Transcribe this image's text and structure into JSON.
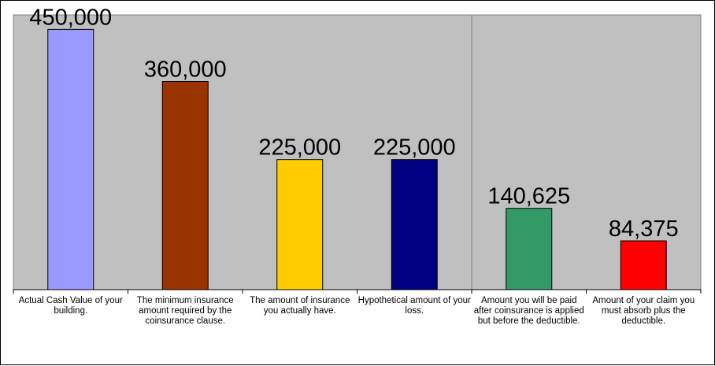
{
  "chart_data": {
    "type": "bar",
    "categories": [
      "Actual Cash Value of your building.",
      "The minimum insurance amount required by the coinsurance clause.",
      "The amount of insurance you actually have.",
      "Hypothetical amount of your loss.",
      "Amount you will be paid after coinsurance is applied but before the deductible.",
      "Amount of your claim you must absorb plus the deductible."
    ],
    "values": [
      450000,
      360000,
      225000,
      225000,
      140625,
      84375
    ],
    "value_labels": [
      "450,000",
      "360,000",
      "225,000",
      "225,000",
      "140,625",
      "84,375"
    ],
    "colors": [
      "#9999FF",
      "#993300",
      "#FFCC00",
      "#000080",
      "#339966",
      "#FF0000"
    ],
    "title": "",
    "xlabel": "",
    "ylabel": "",
    "ylim": [
      0,
      475000
    ],
    "grid": false,
    "legend": "none",
    "plot_background": "#C0C0C0",
    "divider_after_category": 4
  }
}
